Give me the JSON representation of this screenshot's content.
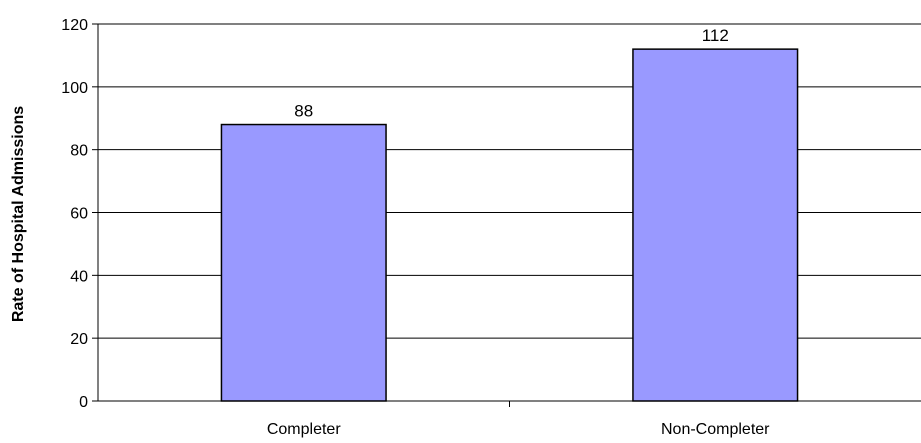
{
  "chart_data": {
    "type": "bar",
    "title": "",
    "xlabel": "",
    "ylabel": "Rate of Hospital Admissions",
    "categories": [
      "Completer",
      "Non-Completer"
    ],
    "values": [
      88,
      112
    ],
    "data_labels": [
      "88",
      "112"
    ],
    "ylim": [
      0,
      120
    ],
    "yticks": [
      0,
      20,
      40,
      60,
      80,
      100,
      120
    ],
    "ytick_labels": [
      "0",
      "20",
      "40",
      "60",
      "80",
      "100",
      "120"
    ],
    "grid": true,
    "legend": "none",
    "bar_color": "#9999ff",
    "bar_edge_color": "#000000",
    "grid_color": "#000000"
  }
}
